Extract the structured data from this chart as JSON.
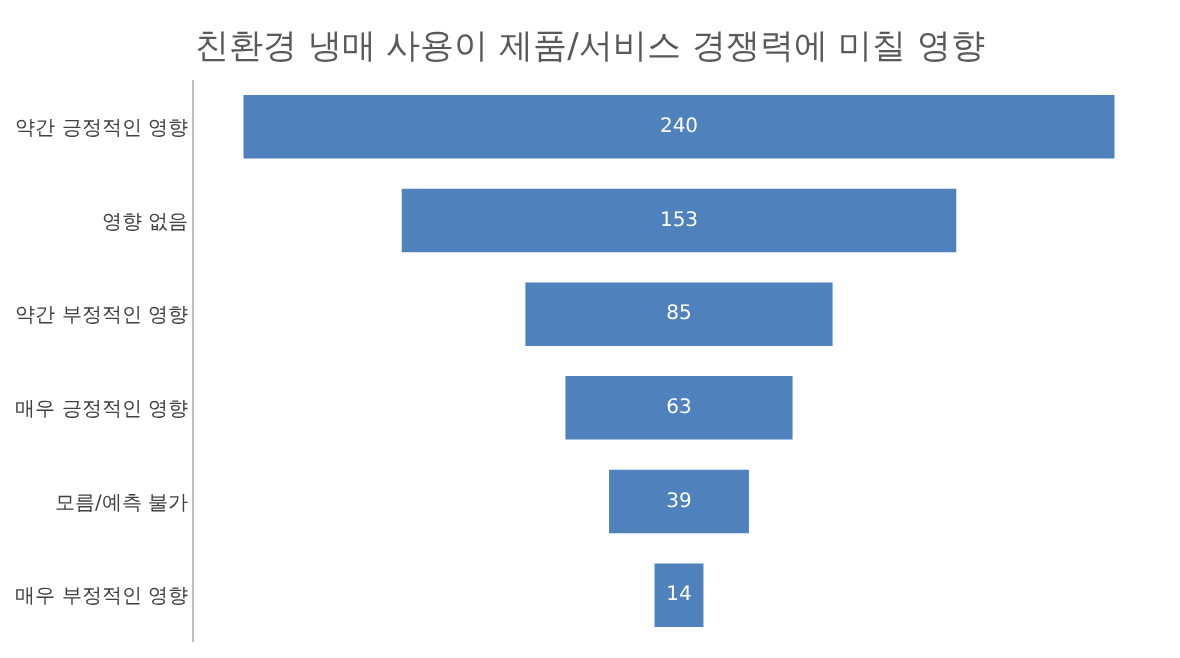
{
  "chart_data": {
    "type": "other",
    "title": "친환경 냉매 사용이 제품/서비스 경쟁력에 미칠 영향",
    "categories": [
      "약간 긍정적인 영향",
      "영향 없음",
      "약간 부정적인 영향",
      "매우 긍정적인 영향",
      "모름/예측 불가",
      "매우 부정적인 영향"
    ],
    "values": [
      240,
      153,
      85,
      63,
      39,
      14
    ],
    "color": "#4f81bd",
    "data_labels": true
  }
}
